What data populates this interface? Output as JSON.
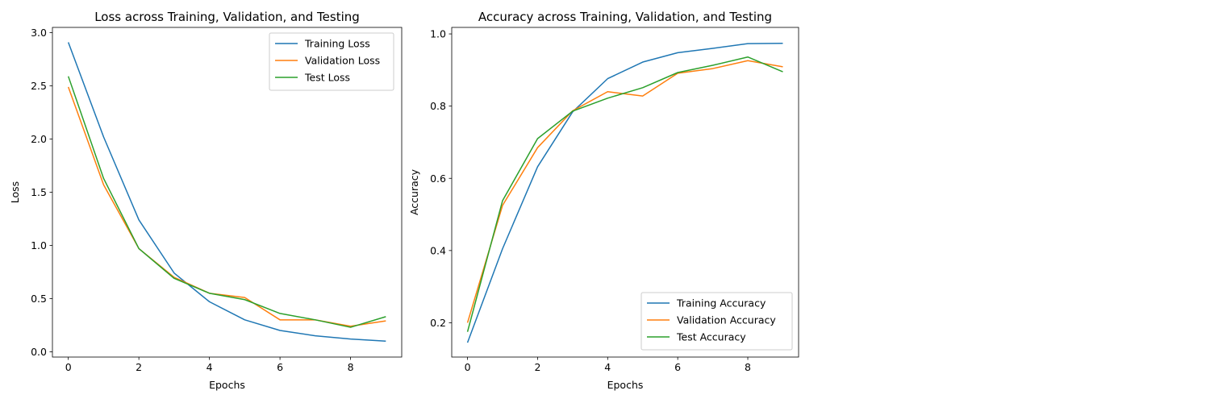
{
  "figure": {
    "background": "#ffffff",
    "colors": {
      "training": "#1f77b4",
      "validation": "#ff7f0e",
      "test": "#2ca02c"
    }
  },
  "chart_data": [
    {
      "type": "line",
      "title": "Loss across Training, Validation, and Testing",
      "xlabel": "Epochs",
      "ylabel": "Loss",
      "xlim": [
        -0.45,
        9.45
      ],
      "ylim": [
        -0.05,
        3.05
      ],
      "xticks": [
        0,
        2,
        4,
        6,
        8
      ],
      "xtick_labels": [
        "0",
        "2",
        "4",
        "6",
        "8"
      ],
      "yticks": [
        0.0,
        0.5,
        1.0,
        1.5,
        2.0,
        2.5,
        3.0
      ],
      "ytick_labels": [
        "0.0",
        "0.5",
        "1.0",
        "1.5",
        "2.0",
        "2.5",
        "3.0"
      ],
      "grid": false,
      "legend_position": "top-right",
      "x": [
        0,
        1,
        2,
        3,
        4,
        5,
        6,
        7,
        8,
        9
      ],
      "series": [
        {
          "name": "Training Loss",
          "color": "#1f77b4",
          "values": [
            2.91,
            2.02,
            1.24,
            0.74,
            0.47,
            0.3,
            0.2,
            0.15,
            0.12,
            0.1
          ]
        },
        {
          "name": "Validation Loss",
          "color": "#ff7f0e",
          "values": [
            2.49,
            1.57,
            0.97,
            0.7,
            0.55,
            0.51,
            0.3,
            0.3,
            0.24,
            0.29
          ]
        },
        {
          "name": "Test Loss",
          "color": "#2ca02c",
          "values": [
            2.59,
            1.63,
            0.97,
            0.69,
            0.55,
            0.49,
            0.36,
            0.3,
            0.23,
            0.33
          ]
        }
      ]
    },
    {
      "type": "line",
      "title": "Accuracy across Training, Validation, and Testing",
      "xlabel": "Epochs",
      "ylabel": "Accuracy",
      "xlim": [
        -0.45,
        9.45
      ],
      "ylim": [
        0.105,
        1.018
      ],
      "xticks": [
        0,
        2,
        4,
        6,
        8
      ],
      "xtick_labels": [
        "0",
        "2",
        "4",
        "6",
        "8"
      ],
      "yticks": [
        0.2,
        0.4,
        0.6,
        0.8,
        1.0
      ],
      "ytick_labels": [
        "0.2",
        "0.4",
        "0.6",
        "0.8",
        "1.0"
      ],
      "grid": false,
      "legend_position": "bottom-right",
      "x": [
        0,
        1,
        2,
        3,
        4,
        5,
        6,
        7,
        8,
        9
      ],
      "series": [
        {
          "name": "Training Accuracy",
          "color": "#1f77b4",
          "values": [
            0.145,
            0.405,
            0.632,
            0.784,
            0.876,
            0.922,
            0.948,
            0.96,
            0.973,
            0.974
          ]
        },
        {
          "name": "Validation Accuracy",
          "color": "#ff7f0e",
          "values": [
            0.2,
            0.525,
            0.685,
            0.787,
            0.84,
            0.828,
            0.891,
            0.904,
            0.926,
            0.909
          ]
        },
        {
          "name": "Test Accuracy",
          "color": "#2ca02c",
          "values": [
            0.175,
            0.538,
            0.71,
            0.786,
            0.822,
            0.851,
            0.893,
            0.913,
            0.936,
            0.895
          ]
        }
      ]
    }
  ]
}
